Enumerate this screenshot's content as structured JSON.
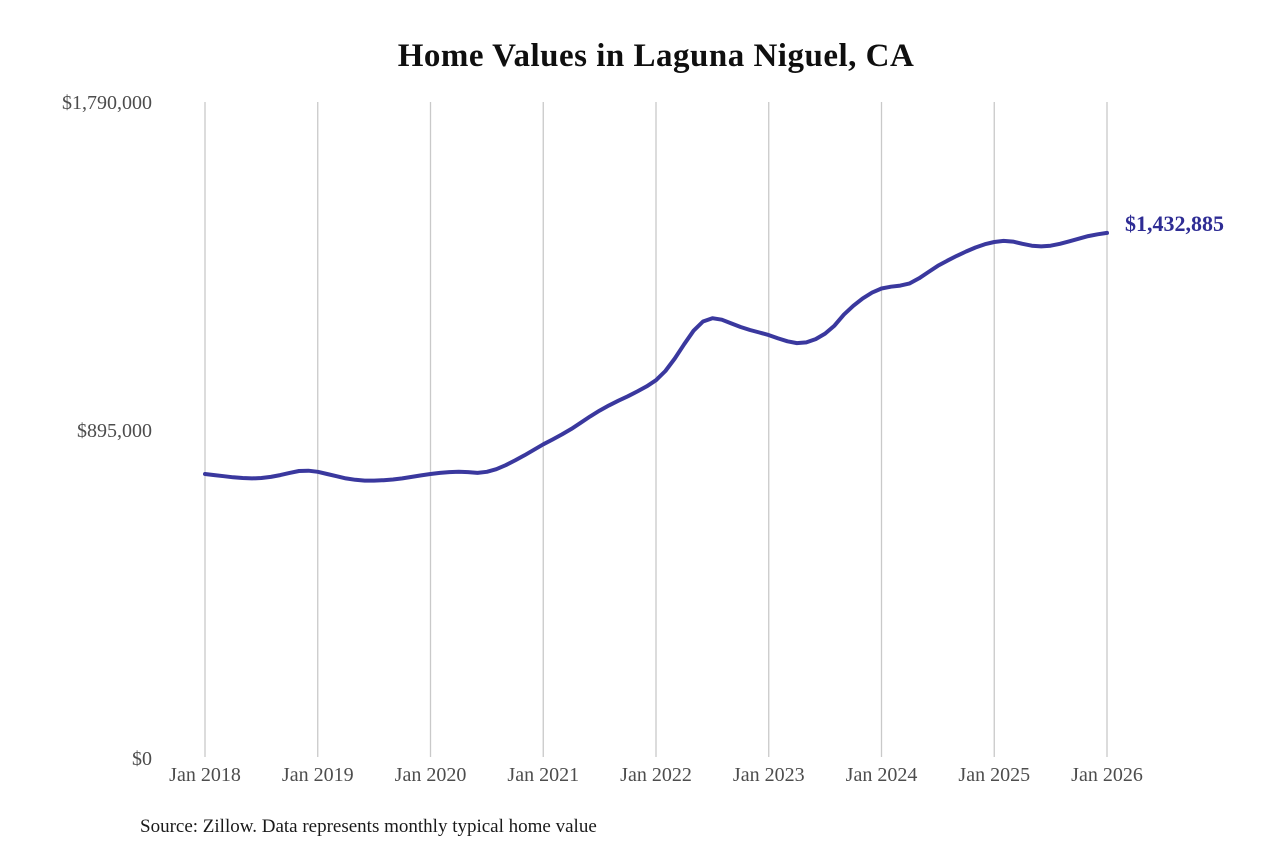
{
  "page": {
    "title": "Home Values in Laguna Niguel, CA",
    "source_note": "Source: Zillow. Data represents monthly typical home value",
    "latest_value_label": "$1,432,885"
  },
  "colors": {
    "line": "#3a389e",
    "latest_label": "#2e2c94",
    "gridline": "#c9c9c9",
    "tick_label": "#4d4d4d",
    "title": "#0f0f0f",
    "source": "#1a1a1a"
  },
  "chart_data": {
    "type": "line",
    "title": "Home Values in Laguna Niguel, CA",
    "xlabel": "",
    "ylabel": "",
    "frequency": "monthly",
    "x_start": "2018-01",
    "x_end": "2026-01",
    "x_tick_labels": [
      "Jan 2018",
      "Jan 2019",
      "Jan 2020",
      "Jan 2021",
      "Jan 2022",
      "Jan 2023",
      "Jan 2024",
      "Jan 2025",
      "Jan 2026"
    ],
    "y_tick_labels": [
      "$1,790,000",
      "$895,000",
      "$0"
    ],
    "y_tick_values": [
      1790000,
      895000,
      0
    ],
    "ylim": [
      0,
      1790000
    ],
    "grid": "vertical-at-each-january",
    "legend": "none",
    "latest_value": 1432885,
    "annotation": "$1,432,885",
    "series": [
      {
        "name": "Typical home value",
        "values": [
          775000,
          772000,
          769000,
          766000,
          764000,
          763000,
          764000,
          767000,
          772000,
          778000,
          783000,
          784000,
          781000,
          775000,
          769000,
          763000,
          759000,
          757000,
          757000,
          758000,
          760000,
          763000,
          767000,
          771000,
          775000,
          778000,
          780000,
          781000,
          780000,
          778000,
          781000,
          788000,
          799000,
          812000,
          826000,
          841000,
          856000,
          869000,
          883000,
          898000,
          915000,
          932000,
          948000,
          962000,
          975000,
          987000,
          1000000,
          1014000,
          1031000,
          1056000,
          1090000,
          1129000,
          1166000,
          1191000,
          1200000,
          1196000,
          1186000,
          1176000,
          1168000,
          1161000,
          1154000,
          1145000,
          1137000,
          1132000,
          1134000,
          1143000,
          1158000,
          1180000,
          1210000,
          1234000,
          1254000,
          1270000,
          1281000,
          1286000,
          1289000,
          1295000,
          1309000,
          1326000,
          1343000,
          1357000,
          1370000,
          1382000,
          1393000,
          1402000,
          1408000,
          1411000,
          1409000,
          1403000,
          1398000,
          1396000,
          1398000,
          1403000,
          1410000,
          1417000,
          1424000,
          1429000,
          1432885
        ]
      }
    ]
  }
}
